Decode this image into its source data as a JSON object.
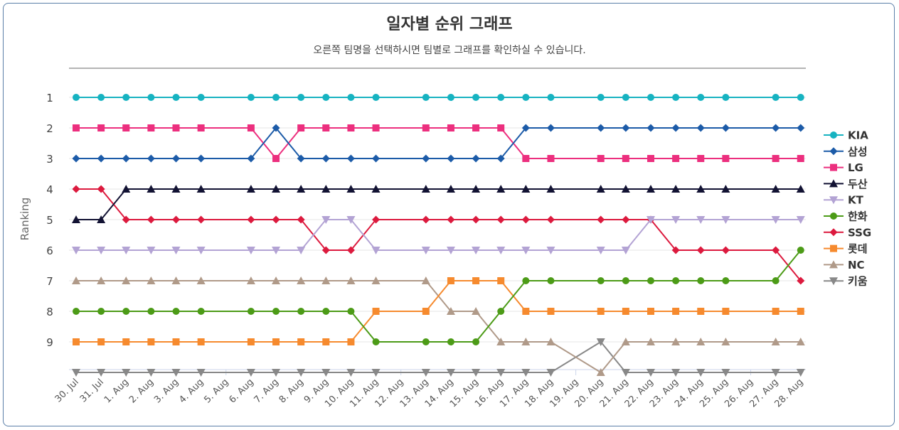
{
  "chart_data": {
    "type": "line",
    "title": "일자별 순위 그래프",
    "subtitle": "오른쪽 팀명을 선택하시면 팀별로 그래프를 확인하실 수 있습니다.",
    "ylabel": "Ranking",
    "xlabel": "",
    "y_ticks": [
      "1",
      "2",
      "3",
      "4",
      "5",
      "6",
      "7",
      "8",
      "9"
    ],
    "y_reversed": true,
    "ylim": [
      1,
      10
    ],
    "categories": [
      "30. Jul",
      "31. Jul",
      "1. Aug",
      "2. Aug",
      "3. Aug",
      "4. Aug",
      "5. Aug",
      "6. Aug",
      "7. Aug",
      "8. Aug",
      "9. Aug",
      "10. Aug",
      "11. Aug",
      "12. Aug",
      "13. Aug",
      "14. Aug",
      "15. Aug",
      "16. Aug",
      "17. Aug",
      "18. Aug",
      "19. Aug",
      "20. Aug",
      "21. Aug",
      "22. Aug",
      "23. Aug",
      "24. Aug",
      "25. Aug",
      "26. Aug",
      "27. Aug",
      "28. Aug"
    ],
    "legend_position": "right",
    "series": [
      {
        "name": "KIA",
        "color": "#17b3c1",
        "marker": "circle",
        "values": [
          1,
          1,
          1,
          1,
          1,
          1,
          null,
          1,
          1,
          1,
          1,
          1,
          1,
          null,
          1,
          1,
          1,
          1,
          1,
          1,
          null,
          1,
          1,
          1,
          1,
          1,
          1,
          null,
          1,
          1
        ]
      },
      {
        "name": "삼성",
        "color": "#1c5ba8",
        "marker": "diamond",
        "values": [
          3,
          3,
          3,
          3,
          3,
          3,
          null,
          3,
          2,
          3,
          3,
          3,
          3,
          null,
          3,
          3,
          3,
          3,
          2,
          2,
          null,
          2,
          2,
          2,
          2,
          2,
          2,
          null,
          2,
          2
        ]
      },
      {
        "name": "LG",
        "color": "#ec2f7e",
        "marker": "square",
        "values": [
          2,
          2,
          2,
          2,
          2,
          2,
          null,
          2,
          3,
          2,
          2,
          2,
          2,
          null,
          2,
          2,
          2,
          2,
          3,
          3,
          null,
          3,
          3,
          3,
          3,
          3,
          3,
          null,
          3,
          3
        ]
      },
      {
        "name": "두산",
        "color": "#121233",
        "marker": "triangle",
        "values": [
          5,
          5,
          4,
          4,
          4,
          4,
          null,
          4,
          4,
          4,
          4,
          4,
          4,
          null,
          4,
          4,
          4,
          4,
          4,
          4,
          null,
          4,
          4,
          4,
          4,
          4,
          4,
          null,
          4,
          4
        ]
      },
      {
        "name": "KT",
        "color": "#b3a3d4",
        "marker": "triangle-down",
        "values": [
          6,
          6,
          6,
          6,
          6,
          6,
          null,
          6,
          6,
          6,
          5,
          5,
          6,
          null,
          6,
          6,
          6,
          6,
          6,
          6,
          null,
          6,
          6,
          5,
          5,
          5,
          5,
          null,
          5,
          5
        ]
      },
      {
        "name": "한화",
        "color": "#4c9b17",
        "marker": "circle",
        "values": [
          8,
          8,
          8,
          8,
          8,
          8,
          null,
          8,
          8,
          8,
          8,
          8,
          9,
          null,
          9,
          9,
          9,
          8,
          7,
          7,
          null,
          7,
          7,
          7,
          7,
          7,
          7,
          null,
          7,
          6
        ]
      },
      {
        "name": "SSG",
        "color": "#dc1a3e",
        "marker": "diamond",
        "values": [
          4,
          4,
          5,
          5,
          5,
          5,
          null,
          5,
          5,
          5,
          6,
          6,
          5,
          null,
          5,
          5,
          5,
          5,
          5,
          5,
          null,
          5,
          5,
          5,
          6,
          6,
          6,
          null,
          6,
          7
        ]
      },
      {
        "name": "롯데",
        "color": "#f68a2e",
        "marker": "square",
        "values": [
          9,
          9,
          9,
          9,
          9,
          9,
          null,
          9,
          9,
          9,
          9,
          9,
          8,
          null,
          8,
          7,
          7,
          7,
          8,
          8,
          null,
          8,
          8,
          8,
          8,
          8,
          8,
          null,
          8,
          8
        ]
      },
      {
        "name": "NC",
        "color": "#b09a89",
        "marker": "triangle",
        "values": [
          7,
          7,
          7,
          7,
          7,
          7,
          null,
          7,
          7,
          7,
          7,
          7,
          7,
          null,
          7,
          8,
          8,
          9,
          9,
          9,
          null,
          10,
          9,
          9,
          9,
          9,
          9,
          null,
          9,
          9
        ]
      },
      {
        "name": "키움",
        "color": "#888888",
        "marker": "triangle-down",
        "values": [
          10,
          10,
          10,
          10,
          10,
          10,
          null,
          10,
          10,
          10,
          10,
          10,
          10,
          null,
          10,
          10,
          10,
          10,
          10,
          10,
          null,
          9,
          10,
          10,
          10,
          10,
          10,
          null,
          10,
          10
        ]
      }
    ]
  }
}
